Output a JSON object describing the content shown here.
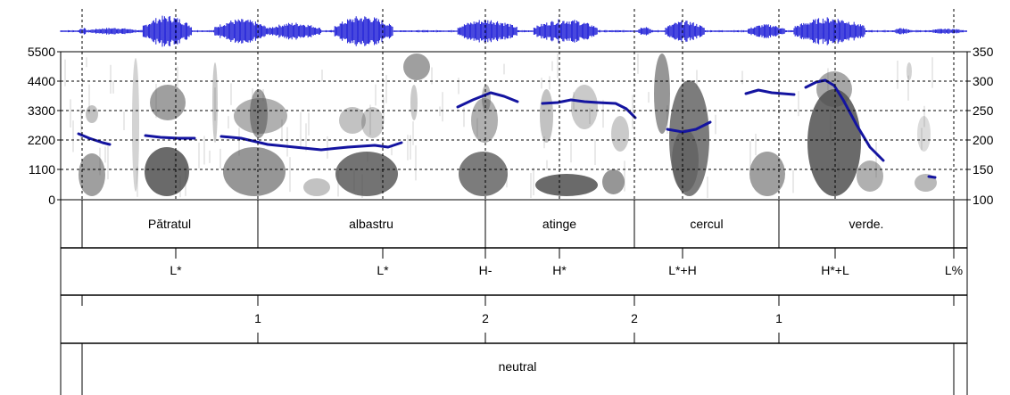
{
  "figure": {
    "y_axis_left": {
      "label": "",
      "ticks": [
        "5500",
        "4400",
        "3300",
        "2200",
        "1100",
        "0"
      ]
    },
    "y_axis_right": {
      "label": "",
      "ticks": [
        "350",
        "300",
        "250",
        "200",
        "150",
        "100"
      ]
    },
    "colors": {
      "waveform": "#1a1ad6",
      "pitch": "#1414a0",
      "spectrogram": "#505050",
      "grid": "#000000"
    }
  },
  "tiers": {
    "words": [
      "Pătratul",
      "albastru",
      "atinge",
      "cercul",
      "verde."
    ],
    "tones": [
      "L*",
      "L*",
      "H-",
      "H*",
      "L*+H",
      "H*+L",
      "L%"
    ],
    "break_indices": [
      "1",
      "2",
      "2",
      "1"
    ],
    "phrase": [
      "neutral"
    ]
  }
}
